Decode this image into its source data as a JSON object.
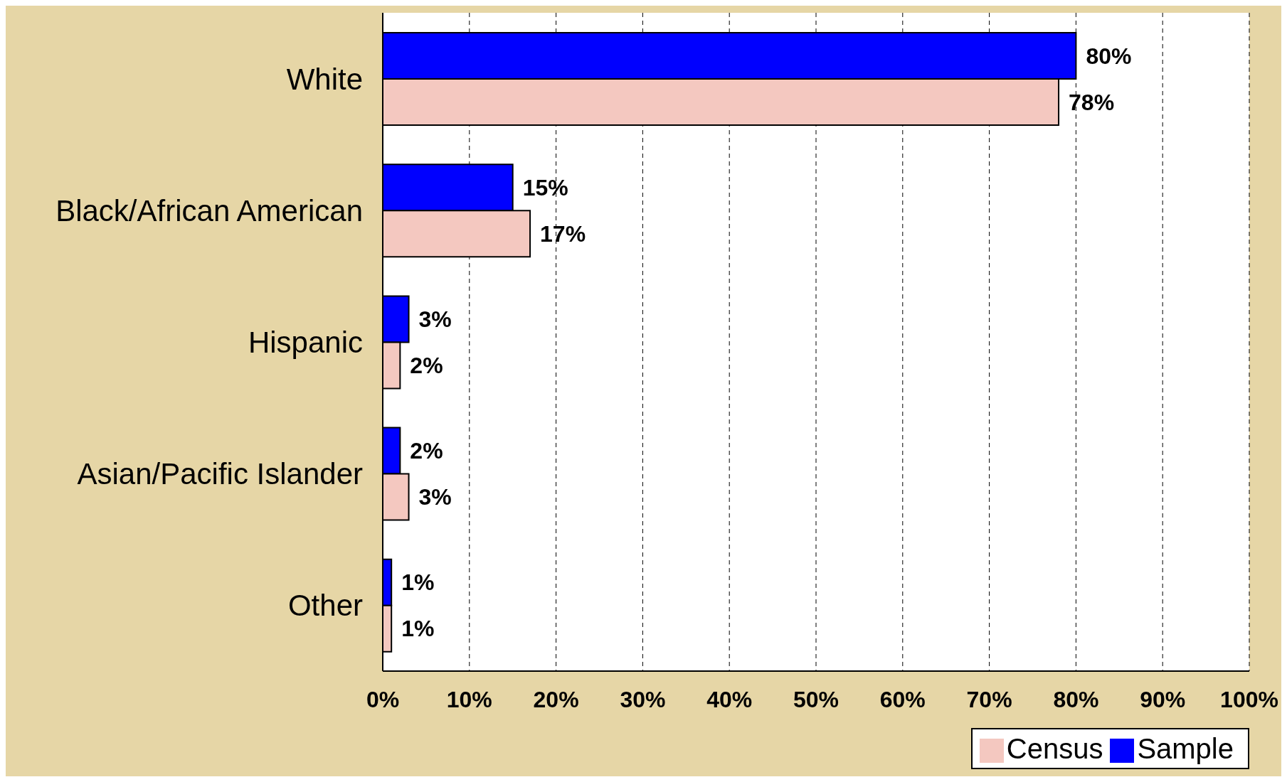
{
  "chart_data": {
    "type": "bar",
    "orientation": "horizontal",
    "categories": [
      "White",
      "Black/African American",
      "Hispanic",
      "Asian/Pacific Islander",
      "Other"
    ],
    "series": [
      {
        "name": "Sample",
        "color": "#0000ff",
        "values": [
          80,
          15,
          3,
          2,
          1
        ],
        "value_labels": [
          "80%",
          "15%",
          "3%",
          "2%",
          "1%"
        ]
      },
      {
        "name": "Census",
        "color": "#f4c8c0",
        "values": [
          78,
          17,
          2,
          3,
          1
        ],
        "value_labels": [
          "78%",
          "17%",
          "2%",
          "3%",
          "1%"
        ]
      }
    ],
    "xlim": [
      0,
      100
    ],
    "xticks": [
      {
        "value": 0,
        "label": "0%"
      },
      {
        "value": 10,
        "label": "10%"
      },
      {
        "value": 20,
        "label": "20%"
      },
      {
        "value": 30,
        "label": "30%"
      },
      {
        "value": 40,
        "label": "40%"
      },
      {
        "value": 50,
        "label": "50%"
      },
      {
        "value": 60,
        "label": "60%"
      },
      {
        "value": 70,
        "label": "70%"
      },
      {
        "value": 80,
        "label": "80%"
      },
      {
        "value": 90,
        "label": "90%"
      },
      {
        "value": 100,
        "label": "100%"
      }
    ],
    "grid": "x",
    "legend": "bottom right"
  }
}
